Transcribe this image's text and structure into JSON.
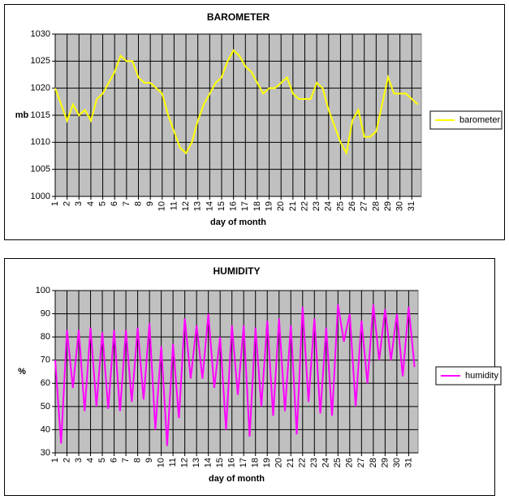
{
  "chart_data": [
    {
      "type": "line",
      "title": "BAROMETER",
      "x_label": "day of month",
      "y_label": "mb",
      "x": [
        1,
        1.5,
        2,
        2.5,
        3,
        3.5,
        4,
        4.5,
        5,
        5.5,
        6,
        6.5,
        7,
        7.5,
        8,
        8.5,
        9,
        9.5,
        10,
        10.5,
        11,
        11.5,
        12,
        12.5,
        13,
        13.5,
        14,
        14.5,
        15,
        15.5,
        16,
        16.5,
        17,
        17.5,
        18,
        18.5,
        19,
        19.5,
        20,
        20.5,
        21,
        21.5,
        22,
        22.5,
        23,
        23.5,
        24,
        24.5,
        25,
        25.5,
        26,
        26.5,
        27,
        27.5,
        28,
        28.5,
        29,
        29.5,
        30,
        30.5,
        31,
        31.5
      ],
      "series": [
        {
          "name": "barometer",
          "color": "#ffff00",
          "values": [
            1020,
            1017,
            1014,
            1017,
            1015,
            1016,
            1014,
            1018,
            1019,
            1021,
            1023,
            1026,
            1025,
            1025,
            1022,
            1021,
            1021,
            1020,
            1019,
            1015,
            1012,
            1009,
            1008,
            1010,
            1014,
            1017,
            1019,
            1021,
            1022,
            1025,
            1027,
            1026,
            1024,
            1023,
            1021,
            1019,
            1020,
            1020,
            1021,
            1022,
            1019,
            1018,
            1018,
            1018,
            1021,
            1020,
            1016,
            1013,
            1010,
            1008,
            1014,
            1016,
            1011,
            1011,
            1012,
            1017,
            1022,
            1019,
            1019,
            1019,
            1018,
            1017
          ]
        }
      ],
      "xlim": [
        1,
        31.8
      ],
      "xticks": [
        1,
        2,
        3,
        4,
        5,
        6,
        7,
        8,
        9,
        10,
        11,
        12,
        13,
        14,
        15,
        16,
        17,
        18,
        19,
        20,
        21,
        22,
        23,
        24,
        25,
        26,
        27,
        28,
        29,
        30,
        31
      ],
      "ylim": [
        1000,
        1030
      ],
      "yticks": [
        1000,
        1005,
        1010,
        1015,
        1020,
        1025,
        1030
      ],
      "grid": true,
      "legend": "right",
      "plot_background": "#c0c0c0"
    },
    {
      "type": "line",
      "title": "HUMIDITY",
      "x_label": "day of month",
      "y_label": "%",
      "x": [
        1,
        1.5,
        2,
        2.5,
        3,
        3.5,
        4,
        4.5,
        5,
        5.5,
        6,
        6.5,
        7,
        7.5,
        8,
        8.5,
        9,
        9.5,
        10,
        10.5,
        11,
        11.5,
        12,
        12.5,
        13,
        13.5,
        14,
        14.5,
        15,
        15.5,
        16,
        16.5,
        17,
        17.5,
        18,
        18.5,
        19,
        19.5,
        20,
        20.5,
        21,
        21.5,
        22,
        22.5,
        23,
        23.5,
        24,
        24.5,
        25,
        25.5,
        26,
        26.5,
        27,
        27.5,
        28,
        28.5,
        29,
        29.5,
        30,
        30.5,
        31,
        31.5
      ],
      "series": [
        {
          "name": "humidity",
          "color": "#ff00ff",
          "values": [
            70,
            34,
            83,
            58,
            83,
            48,
            84,
            50,
            82,
            49,
            83,
            48,
            83,
            52,
            84,
            53,
            86,
            40,
            76,
            33,
            77,
            45,
            88,
            62,
            85,
            62,
            90,
            58,
            80,
            40,
            85,
            55,
            85,
            37,
            84,
            50,
            87,
            46,
            88,
            48,
            85,
            38,
            93,
            52,
            88,
            47,
            84,
            46,
            94,
            78,
            90,
            50,
            87,
            60,
            94,
            70,
            92,
            70,
            90,
            63,
            93,
            67
          ]
        }
      ],
      "xlim": [
        1,
        31.8
      ],
      "xticks": [
        1,
        2,
        3,
        4,
        5,
        6,
        7,
        8,
        9,
        10,
        11,
        12,
        13,
        14,
        15,
        16,
        17,
        18,
        19,
        20,
        21,
        22,
        23,
        24,
        25,
        26,
        27,
        28,
        29,
        30,
        31
      ],
      "ylim": [
        30,
        100
      ],
      "yticks": [
        30,
        40,
        50,
        60,
        70,
        80,
        90,
        100
      ],
      "grid": true,
      "legend": "right",
      "plot_background": "#c0c0c0"
    }
  ]
}
